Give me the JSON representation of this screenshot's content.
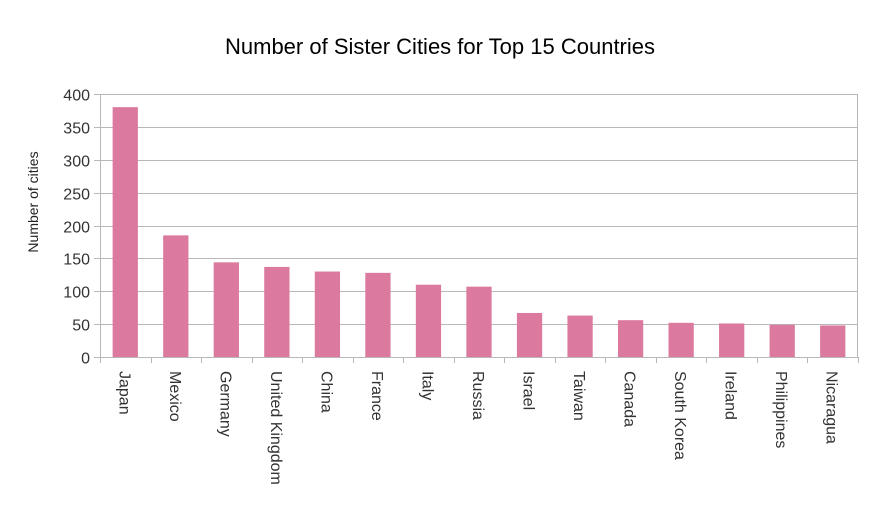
{
  "chart_data": {
    "type": "bar",
    "title": "Number of Sister Cities for Top 15 Countries",
    "xlabel": "",
    "ylabel": "Number of cities",
    "categories": [
      "Japan",
      "Mexico",
      "Germany",
      "United Kingdom",
      "China",
      "France",
      "Italy",
      "Russia",
      "Israel",
      "Taiwan",
      "Canada",
      "South Korea",
      "Ireland",
      "Philippines",
      "Nicaragua"
    ],
    "values": [
      380,
      185,
      144,
      137,
      130,
      128,
      110,
      107,
      67,
      63,
      56,
      52,
      51,
      49,
      48
    ],
    "ylim": [
      0,
      400
    ],
    "yticks": [
      0,
      50,
      100,
      150,
      200,
      250,
      300,
      350,
      400
    ],
    "grid": true,
    "legend": "none",
    "bar_color": "#db7a9e",
    "grid_color": "#b8b8b8"
  }
}
